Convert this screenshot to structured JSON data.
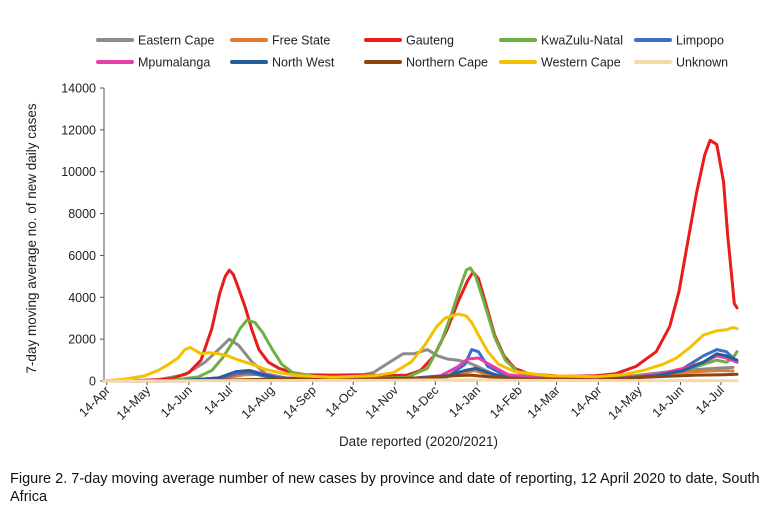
{
  "caption": "Figure 2. 7-day moving average number of new cases by province and date of reporting, 12 April 2020 to date, South Africa",
  "chart_data": {
    "type": "line",
    "xlabel": "Date reported (2020/2021)",
    "ylabel": "7-day moving average no. of new daily cases",
    "ylim": [
      0,
      14000
    ],
    "yticks": [
      0,
      2000,
      4000,
      6000,
      8000,
      10000,
      12000,
      14000
    ],
    "ytick_labels": [
      "0",
      "2000",
      "4000",
      "6000",
      "8000",
      "10000",
      "12000",
      "14000"
    ],
    "xlim": [
      0,
      467
    ],
    "x_unit": "days since 2020-04-12",
    "xticks": [
      {
        "x": 2,
        "label": "14-Apr"
      },
      {
        "x": 32,
        "label": "14-May"
      },
      {
        "x": 63,
        "label": "14-Jun"
      },
      {
        "x": 93,
        "label": "14-Jul"
      },
      {
        "x": 124,
        "label": "14-Aug"
      },
      {
        "x": 155,
        "label": "14-Sep"
      },
      {
        "x": 185,
        "label": "14-Oct"
      },
      {
        "x": 216,
        "label": "14-Nov"
      },
      {
        "x": 246,
        "label": "14-Dec"
      },
      {
        "x": 277,
        "label": "14-Jan"
      },
      {
        "x": 308,
        "label": "14-Feb"
      },
      {
        "x": 336,
        "label": "14-Mar"
      },
      {
        "x": 367,
        "label": "14-Apr"
      },
      {
        "x": 397,
        "label": "14-May"
      },
      {
        "x": 428,
        "label": "14-Jun"
      },
      {
        "x": 458,
        "label": "14-Jul"
      }
    ],
    "grid": false,
    "legend_position": "top",
    "series": [
      {
        "name": "Eastern Cape",
        "color": "#8c8c8c",
        "points": [
          [
            0,
            0
          ],
          [
            40,
            60
          ],
          [
            60,
            300
          ],
          [
            75,
            900
          ],
          [
            85,
            1500
          ],
          [
            93,
            2000
          ],
          [
            100,
            1700
          ],
          [
            110,
            900
          ],
          [
            120,
            350
          ],
          [
            135,
            150
          ],
          [
            160,
            100
          ],
          [
            180,
            120
          ],
          [
            200,
            400
          ],
          [
            212,
            900
          ],
          [
            222,
            1300
          ],
          [
            230,
            1300
          ],
          [
            240,
            1500
          ],
          [
            248,
            1200
          ],
          [
            255,
            1050
          ],
          [
            262,
            1000
          ],
          [
            270,
            900
          ],
          [
            277,
            700
          ],
          [
            290,
            300
          ],
          [
            305,
            120
          ],
          [
            330,
            80
          ],
          [
            360,
            80
          ],
          [
            380,
            150
          ],
          [
            400,
            300
          ],
          [
            420,
            450
          ],
          [
            440,
            550
          ],
          [
            458,
            620
          ],
          [
            467,
            650
          ]
        ]
      },
      {
        "name": "Free State",
        "color": "#e07a2e",
        "points": [
          [
            0,
            0
          ],
          [
            60,
            20
          ],
          [
            85,
            100
          ],
          [
            105,
            300
          ],
          [
            118,
            320
          ],
          [
            130,
            150
          ],
          [
            150,
            60
          ],
          [
            200,
            50
          ],
          [
            240,
            100
          ],
          [
            265,
            350
          ],
          [
            275,
            500
          ],
          [
            285,
            300
          ],
          [
            305,
            100
          ],
          [
            340,
            40
          ],
          [
            380,
            100
          ],
          [
            410,
            300
          ],
          [
            440,
            450
          ],
          [
            458,
            500
          ],
          [
            467,
            480
          ]
        ]
      },
      {
        "name": "Gauteng",
        "color": "#e81c1c",
        "points": [
          [
            0,
            0
          ],
          [
            30,
            30
          ],
          [
            50,
            100
          ],
          [
            63,
            400
          ],
          [
            72,
            1000
          ],
          [
            80,
            2500
          ],
          [
            86,
            4200
          ],
          [
            90,
            5000
          ],
          [
            93,
            5300
          ],
          [
            96,
            5100
          ],
          [
            100,
            4400
          ],
          [
            105,
            3500
          ],
          [
            110,
            2400
          ],
          [
            115,
            1500
          ],
          [
            122,
            900
          ],
          [
            130,
            600
          ],
          [
            140,
            400
          ],
          [
            150,
            300
          ],
          [
            170,
            280
          ],
          [
            190,
            300
          ],
          [
            210,
            250
          ],
          [
            225,
            280
          ],
          [
            235,
            500
          ],
          [
            245,
            1200
          ],
          [
            255,
            2500
          ],
          [
            263,
            3800
          ],
          [
            270,
            4800
          ],
          [
            274,
            5200
          ],
          [
            278,
            4900
          ],
          [
            283,
            3800
          ],
          [
            290,
            2200
          ],
          [
            297,
            1200
          ],
          [
            305,
            600
          ],
          [
            315,
            350
          ],
          [
            340,
            220
          ],
          [
            365,
            250
          ],
          [
            380,
            350
          ],
          [
            395,
            700
          ],
          [
            410,
            1400
          ],
          [
            420,
            2600
          ],
          [
            427,
            4300
          ],
          [
            433,
            6500
          ],
          [
            440,
            9000
          ],
          [
            446,
            10800
          ],
          [
            450,
            11500
          ],
          [
            455,
            11300
          ],
          [
            460,
            9500
          ],
          [
            463,
            7000
          ],
          [
            466,
            5000
          ],
          [
            468,
            3700
          ],
          [
            470,
            3500
          ]
        ]
      },
      {
        "name": "KwaZulu-Natal",
        "color": "#6eb043",
        "points": [
          [
            0,
            0
          ],
          [
            50,
            30
          ],
          [
            70,
            200
          ],
          [
            80,
            500
          ],
          [
            88,
            1100
          ],
          [
            95,
            1800
          ],
          [
            101,
            2500
          ],
          [
            106,
            2900
          ],
          [
            112,
            2800
          ],
          [
            118,
            2300
          ],
          [
            125,
            1500
          ],
          [
            132,
            800
          ],
          [
            140,
            400
          ],
          [
            160,
            180
          ],
          [
            200,
            120
          ],
          [
            225,
            180
          ],
          [
            240,
            600
          ],
          [
            250,
            1800
          ],
          [
            258,
            3200
          ],
          [
            264,
            4400
          ],
          [
            269,
            5300
          ],
          [
            272,
            5400
          ],
          [
            276,
            5000
          ],
          [
            282,
            3800
          ],
          [
            290,
            2100
          ],
          [
            298,
            1000
          ],
          [
            308,
            400
          ],
          [
            330,
            200
          ],
          [
            365,
            150
          ],
          [
            390,
            200
          ],
          [
            410,
            300
          ],
          [
            430,
            500
          ],
          [
            445,
            800
          ],
          [
            455,
            1000
          ],
          [
            462,
            900
          ],
          [
            467,
            1100
          ],
          [
            470,
            1400
          ]
        ]
      },
      {
        "name": "Limpopo",
        "color": "#3c6fbf",
        "points": [
          [
            0,
            0
          ],
          [
            60,
            20
          ],
          [
            85,
            100
          ],
          [
            98,
            350
          ],
          [
            108,
            400
          ],
          [
            118,
            250
          ],
          [
            130,
            100
          ],
          [
            160,
            50
          ],
          [
            220,
            60
          ],
          [
            255,
            200
          ],
          [
            268,
            800
          ],
          [
            273,
            1500
          ],
          [
            278,
            1400
          ],
          [
            285,
            700
          ],
          [
            300,
            200
          ],
          [
            330,
            80
          ],
          [
            380,
            100
          ],
          [
            410,
            300
          ],
          [
            430,
            600
          ],
          [
            445,
            1200
          ],
          [
            455,
            1500
          ],
          [
            462,
            1400
          ],
          [
            467,
            1100
          ],
          [
            470,
            900
          ]
        ]
      },
      {
        "name": "Mpumalanga",
        "color": "#e83ea8",
        "points": [
          [
            0,
            0
          ],
          [
            60,
            20
          ],
          [
            85,
            150
          ],
          [
            100,
            450
          ],
          [
            108,
            500
          ],
          [
            118,
            350
          ],
          [
            130,
            150
          ],
          [
            160,
            60
          ],
          [
            220,
            80
          ],
          [
            250,
            250
          ],
          [
            263,
            700
          ],
          [
            270,
            1050
          ],
          [
            278,
            1100
          ],
          [
            286,
            800
          ],
          [
            300,
            300
          ],
          [
            330,
            100
          ],
          [
            380,
            100
          ],
          [
            410,
            300
          ],
          [
            430,
            600
          ],
          [
            445,
            900
          ],
          [
            455,
            1200
          ],
          [
            462,
            1100
          ],
          [
            470,
            900
          ]
        ]
      },
      {
        "name": "North West",
        "color": "#245f99",
        "points": [
          [
            0,
            0
          ],
          [
            60,
            30
          ],
          [
            85,
            150
          ],
          [
            98,
            450
          ],
          [
            108,
            500
          ],
          [
            118,
            300
          ],
          [
            130,
            150
          ],
          [
            160,
            60
          ],
          [
            220,
            80
          ],
          [
            255,
            250
          ],
          [
            268,
            500
          ],
          [
            276,
            600
          ],
          [
            285,
            400
          ],
          [
            300,
            150
          ],
          [
            330,
            60
          ],
          [
            380,
            100
          ],
          [
            410,
            250
          ],
          [
            430,
            500
          ],
          [
            445,
            900
          ],
          [
            455,
            1300
          ],
          [
            462,
            1200
          ],
          [
            470,
            1000
          ]
        ]
      },
      {
        "name": "Northern Cape",
        "color": "#8b4513",
        "points": [
          [
            0,
            0
          ],
          [
            80,
            30
          ],
          [
            120,
            80
          ],
          [
            160,
            80
          ],
          [
            200,
            100
          ],
          [
            240,
            150
          ],
          [
            260,
            250
          ],
          [
            272,
            280
          ],
          [
            285,
            200
          ],
          [
            310,
            100
          ],
          [
            350,
            80
          ],
          [
            380,
            120
          ],
          [
            410,
            200
          ],
          [
            440,
            280
          ],
          [
            460,
            300
          ],
          [
            470,
            320
          ]
        ]
      },
      {
        "name": "Western Cape",
        "color": "#f5c000",
        "points": [
          [
            0,
            0
          ],
          [
            15,
            80
          ],
          [
            30,
            250
          ],
          [
            40,
            500
          ],
          [
            48,
            800
          ],
          [
            55,
            1100
          ],
          [
            60,
            1500
          ],
          [
            64,
            1600
          ],
          [
            68,
            1450
          ],
          [
            72,
            1300
          ],
          [
            78,
            1350
          ],
          [
            85,
            1300
          ],
          [
            92,
            1200
          ],
          [
            100,
            1000
          ],
          [
            110,
            800
          ],
          [
            120,
            550
          ],
          [
            130,
            400
          ],
          [
            145,
            250
          ],
          [
            170,
            180
          ],
          [
            200,
            250
          ],
          [
            215,
            400
          ],
          [
            228,
            900
          ],
          [
            238,
            1700
          ],
          [
            247,
            2600
          ],
          [
            253,
            3000
          ],
          [
            258,
            3100
          ],
          [
            263,
            3200
          ],
          [
            269,
            3100
          ],
          [
            273,
            2800
          ],
          [
            278,
            2200
          ],
          [
            285,
            1400
          ],
          [
            293,
            800
          ],
          [
            305,
            450
          ],
          [
            330,
            250
          ],
          [
            365,
            200
          ],
          [
            385,
            300
          ],
          [
            400,
            500
          ],
          [
            415,
            800
          ],
          [
            425,
            1100
          ],
          [
            435,
            1600
          ],
          [
            445,
            2200
          ],
          [
            455,
            2400
          ],
          [
            462,
            2450
          ],
          [
            467,
            2550
          ],
          [
            470,
            2500
          ]
        ]
      },
      {
        "name": "Unknown",
        "color": "#f7d9a8",
        "points": [
          [
            0,
            0
          ],
          [
            100,
            20
          ],
          [
            200,
            30
          ],
          [
            270,
            60
          ],
          [
            300,
            30
          ],
          [
            400,
            20
          ],
          [
            470,
            20
          ]
        ]
      }
    ]
  }
}
